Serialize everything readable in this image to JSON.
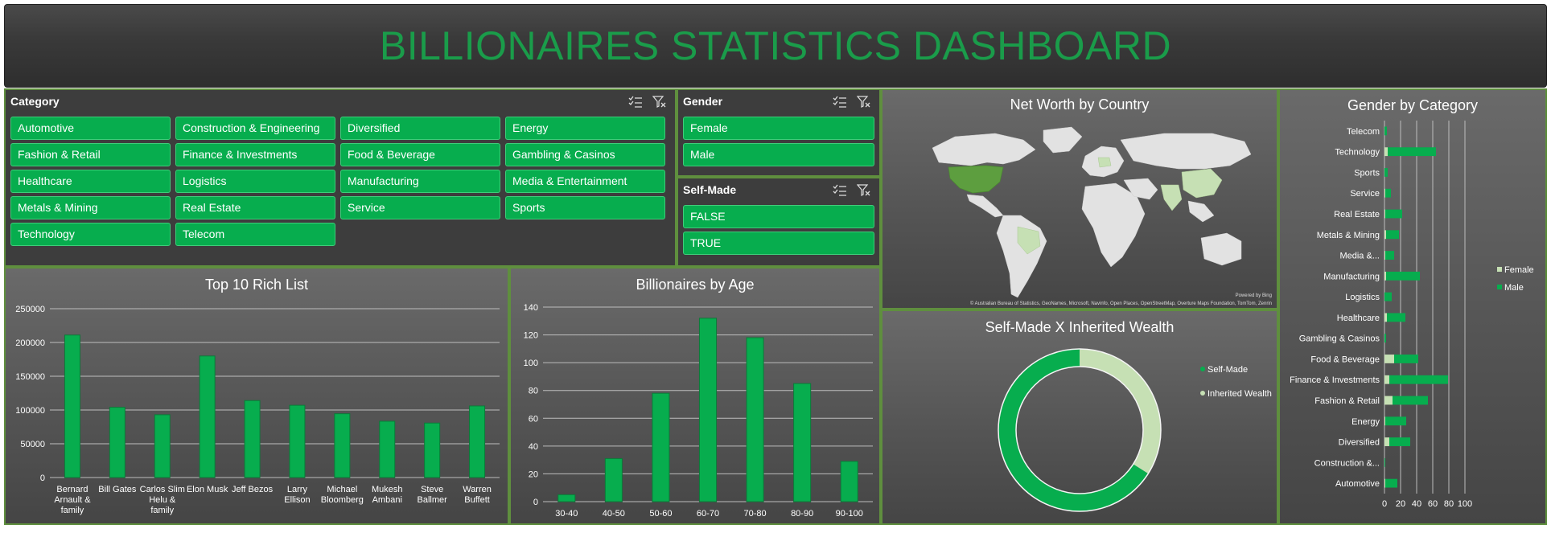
{
  "header": {
    "title": "BILLIONAIRES STATISTICS DASHBOARD"
  },
  "category_slicer": {
    "title": "Category",
    "items": [
      "Automotive",
      "Construction & Engineering",
      "Diversified",
      "Energy",
      "Fashion & Retail",
      "Finance & Investments",
      "Food & Beverage",
      "Gambling & Casinos",
      "Healthcare",
      "Logistics",
      "Manufacturing",
      "Media & Entertainment",
      "Metals & Mining",
      "Real Estate",
      "Service",
      "Sports",
      "Technology",
      "Telecom"
    ]
  },
  "gender_slicer": {
    "title": "Gender",
    "items": [
      "Female",
      "Male"
    ]
  },
  "selfmade_slicer": {
    "title": "Self-Made",
    "items": [
      "FALSE",
      "TRUE"
    ]
  },
  "map": {
    "title": "Net Worth by Country",
    "powered_by": "Powered by Bing",
    "attribution": "© Australian Bureau of Statistics, GeoNames, Microsoft, Navinfo, Open Places, OpenStreetMap, Overture Maps Foundation, TomTom, Zenrin"
  },
  "colors": {
    "green": "#07ad4e",
    "light_green": "#c6e0b4",
    "border": "#5f8f3e",
    "title": "#1a9c4a"
  },
  "chart_data": [
    {
      "id": "top10",
      "type": "bar",
      "title": "Top 10 Rich List",
      "categories": [
        "Bernard Arnault & family",
        "Bill Gates",
        "Carlos Slim Helu & family",
        "Elon Musk",
        "Jeff Bezos",
        "Larry Ellison",
        "Michael Bloomberg",
        "Mukesh Ambani",
        "Steve Ballmer",
        "Warren Buffett"
      ],
      "category_lines": [
        [
          "Bernard",
          "Arnault &",
          "family"
        ],
        [
          "Bill Gates"
        ],
        [
          "Carlos Slim",
          "Helu &",
          "family"
        ],
        [
          "Elon Musk"
        ],
        [
          "Jeff Bezos"
        ],
        [
          "Larry",
          "Ellison"
        ],
        [
          "Michael",
          "Bloomberg"
        ],
        [
          "Mukesh",
          "Ambani"
        ],
        [
          "Steve",
          "Ballmer"
        ],
        [
          "Warren",
          "Buffett"
        ]
      ],
      "values": [
        211000,
        104000,
        93000,
        180000,
        114000,
        107000,
        94500,
        83400,
        80700,
        106000
      ],
      "yticks": [
        0,
        50000,
        100000,
        150000,
        200000,
        250000
      ],
      "ylim": [
        0,
        250000
      ]
    },
    {
      "id": "age",
      "type": "bar",
      "title": "Billionaires by Age",
      "categories": [
        "30-40",
        "40-50",
        "50-60",
        "60-70",
        "70-80",
        "80-90",
        "90-100"
      ],
      "values": [
        5,
        31,
        78,
        132,
        118,
        85,
        29
      ],
      "yticks": [
        0,
        20,
        40,
        60,
        80,
        100,
        120,
        140
      ],
      "ylim": [
        0,
        140
      ]
    },
    {
      "id": "selfmade",
      "type": "pie",
      "title": "Self-Made X Inherited Wealth",
      "labels": [
        "Self-Made",
        "Inherited Wealth"
      ],
      "values": [
        66,
        34
      ],
      "legend": "right"
    },
    {
      "id": "gender",
      "type": "bar",
      "orientation": "horizontal",
      "title": "Gender by Category",
      "categories": [
        "Telecom",
        "Technology",
        "Sports",
        "Service",
        "Real Estate",
        "Metals & Mining",
        "Media &...",
        "Manufacturing",
        "Logistics",
        "Healthcare",
        "Gambling & Casinos",
        "Food & Beverage",
        "Finance & Investments",
        "Fashion & Retail",
        "Energy",
        "Diversified",
        "Construction &...",
        "Automotive"
      ],
      "series": [
        {
          "name": "Female",
          "values": [
            0,
            4,
            0,
            1,
            1,
            2,
            1,
            2,
            0,
            3,
            0,
            12,
            6,
            10,
            1,
            6,
            0,
            1
          ]
        },
        {
          "name": "Male",
          "values": [
            3,
            60,
            4,
            7,
            21,
            16,
            11,
            42,
            9,
            23,
            2,
            30,
            73,
            44,
            26,
            26,
            1,
            15
          ]
        }
      ],
      "xticks": [
        0,
        20,
        40,
        60,
        80,
        100
      ],
      "xlim": [
        0,
        100
      ],
      "legend": "right"
    }
  ]
}
